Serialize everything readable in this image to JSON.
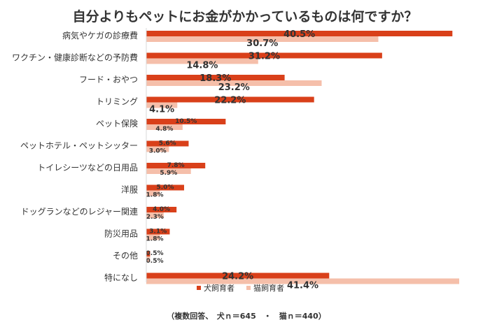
{
  "chart_data": {
    "type": "bar",
    "orientation": "horizontal",
    "title": "自分よりもペットにお金がかかっているものは何ですか？",
    "categories": [
      "病気やケガの診療費",
      "ワクチン・健康診断などの予防費",
      "フード・おやつ",
      "トリミング",
      "ペット保険",
      "ペットホテル・ペットシッター",
      "トイレシーツなどの日用品",
      "洋服",
      "ドッグランなどのレジャー関連",
      "防災用品",
      "その他",
      "特になし"
    ],
    "series": [
      {
        "name": "犬飼育者",
        "color": "#d9401a",
        "values": [
          40.5,
          31.2,
          18.3,
          22.2,
          10.5,
          5.6,
          7.8,
          5.0,
          4.0,
          3.1,
          0.5,
          24.2
        ],
        "labels": [
          "40.5%",
          "31.2%",
          "18.3%",
          "22.2%",
          "10.5%",
          "5.6%",
          "7.8%",
          "5.0%",
          "4.0%",
          "3.1%",
          "0.5%",
          "24.2%"
        ]
      },
      {
        "name": "猫飼育者",
        "color": "#f5bfaa",
        "values": [
          30.7,
          14.8,
          23.2,
          4.1,
          4.8,
          3.0,
          5.9,
          1.8,
          2.3,
          1.8,
          0.5,
          41.4
        ],
        "labels": [
          "30.7%",
          "14.8%",
          "23.2%",
          "4.1%",
          "4.8%",
          "3.0%",
          "5.9%",
          "1.8%",
          "2.3%",
          "1.8%",
          "0.5%",
          "41.4%"
        ]
      }
    ],
    "xlim": [
      0,
      41.4
    ],
    "grid": false,
    "legend_position": "bottom",
    "note": "（複数回答、　犬ｎ＝645　・　猫ｎ＝440）"
  }
}
